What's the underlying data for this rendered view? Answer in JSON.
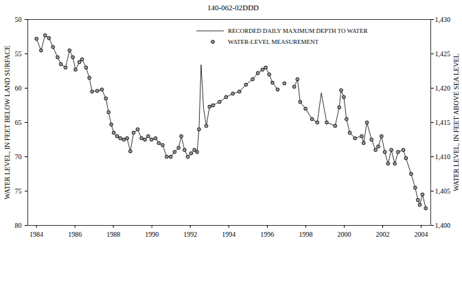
{
  "chart_data": {
    "type": "line",
    "title": "140-062-02DDD",
    "ylabel": "WATER LEVEL, IN FEET BELOW LAND SURFACE",
    "y2label": "WATER LEVEL, IN FEET ABOVE SEA LEVEL",
    "xlim": [
      1983.55,
      2004.5
    ],
    "xticks": [
      1984,
      1986,
      1988,
      1990,
      1992,
      1994,
      1996,
      1998,
      2000,
      2002,
      2004
    ],
    "ylim": [
      50,
      80
    ],
    "yticks": [
      50,
      55,
      60,
      65,
      70,
      75,
      80
    ],
    "y2lim": [
      1430,
      1400
    ],
    "y2ticks": [
      {
        "value": 1430,
        "label": "1,430"
      },
      {
        "value": 1425,
        "label": "1,425"
      },
      {
        "value": 1420,
        "label": "1,420"
      },
      {
        "value": 1415,
        "label": "1,415"
      },
      {
        "value": 1410,
        "label": "1,410"
      },
      {
        "value": 1405,
        "label": "1,405"
      },
      {
        "value": 1400,
        "label": "1,400"
      }
    ],
    "grid": false,
    "legend": "top",
    "series": [
      {
        "name": "RECORDED DAILY MAXIMUM DEPTH TO WATER",
        "type": "line",
        "line_style": "solid",
        "color": "#000000",
        "x": [
          1984.0,
          1984.24,
          1984.45,
          1984.65,
          1984.86,
          1985.1,
          1985.27,
          1985.51,
          1985.72,
          1985.89,
          1986.03,
          1986.23,
          1986.37,
          1986.58,
          1986.75,
          1986.89,
          1987.16,
          1987.4,
          1987.61,
          1987.75,
          1987.89,
          1988.02,
          1988.19,
          1988.36,
          1988.54,
          1988.71,
          1988.88,
          1989.05,
          1989.26,
          1989.46,
          1989.64,
          1989.81,
          1989.98,
          1990.19,
          1990.36,
          1990.56,
          1990.77,
          1990.98,
          1991.18,
          1991.39,
          1991.53,
          1991.7,
          1991.87,
          1992.04,
          1992.21,
          1992.35,
          1992.45,
          1992.56,
          1992.69,
          1992.83,
          1993.0,
          1993.18,
          1993.52,
          1993.86,
          1994.21,
          1994.55,
          1994.89,
          1995.24,
          1995.51,
          1995.75,
          1995.92,
          1996.1,
          1996.27,
          1996.54,
          1996.7,
          1997.4,
          1997.57,
          1997.71,
          1997.99,
          1998.33,
          1998.6,
          1998.81,
          1999.09,
          1999.53,
          1999.74,
          1999.84,
          1999.98,
          2000.12,
          2000.29,
          2000.56,
          2000.91,
          2001.01,
          2001.18,
          2001.42,
          2001.63,
          2001.77,
          2001.94,
          2002.11,
          2002.28,
          2002.45,
          2002.63,
          2002.8,
          2003.07,
          2003.21,
          2003.48,
          2003.69,
          2003.83,
          2003.93,
          2004.07,
          2004.24
        ],
        "values": [
          52.8,
          54.5,
          52.3,
          52.7,
          54,
          55.5,
          56.5,
          57,
          54.5,
          55.5,
          57.3,
          56.2,
          55.8,
          57,
          58.5,
          60.5,
          60.4,
          60.2,
          61.5,
          63.5,
          65.3,
          66.5,
          67,
          67.3,
          67.5,
          67.3,
          69.2,
          66.5,
          66,
          67.3,
          67.5,
          67,
          67.5,
          67.3,
          68,
          68.3,
          70,
          70,
          69.3,
          68.7,
          67,
          69,
          70,
          69.5,
          69,
          69.3,
          66,
          56.6,
          63,
          65.5,
          62.7,
          62.5,
          62,
          61.3,
          60.8,
          60.5,
          59.5,
          58.7,
          57.8,
          57.3,
          57,
          58,
          59.2,
          60.2,
          null,
          59.8,
          58.7,
          62,
          63,
          64.5,
          65,
          60.7,
          65,
          65.5,
          62.8,
          60.3,
          61.3,
          64.5,
          66.5,
          67.3,
          67,
          68,
          65,
          67.5,
          69,
          68.5,
          67,
          69.3,
          71,
          69,
          71,
          69.3,
          69,
          70.2,
          72.5,
          74.5,
          76.3,
          77,
          75.5,
          77.5
        ]
      },
      {
        "name": "WATER-LEVEL MEASUREMENT",
        "type": "scatter",
        "marker": "circle",
        "color": "#000000",
        "x": [
          1984.0,
          1984.24,
          1984.45,
          1984.65,
          1984.86,
          1985.1,
          1985.27,
          1985.51,
          1985.72,
          1985.89,
          1986.03,
          1986.23,
          1986.37,
          1986.58,
          1986.75,
          1986.89,
          1987.16,
          1987.4,
          1987.61,
          1987.75,
          1987.89,
          1988.02,
          1988.19,
          1988.36,
          1988.54,
          1988.71,
          1988.88,
          1989.05,
          1989.26,
          1989.46,
          1989.64,
          1989.81,
          1989.98,
          1990.19,
          1990.36,
          1990.56,
          1990.77,
          1990.98,
          1991.18,
          1991.39,
          1991.53,
          1991.7,
          1991.87,
          1992.04,
          1992.21,
          1992.35,
          1992.45,
          1992.83,
          1993.0,
          1993.18,
          1993.52,
          1993.86,
          1994.21,
          1994.55,
          1994.89,
          1995.24,
          1995.51,
          1995.75,
          1995.92,
          1996.1,
          1996.27,
          1996.54,
          1996.89,
          1997.4,
          1997.57,
          1997.71,
          1997.99,
          1998.33,
          1998.6,
          1999.09,
          1999.53,
          1999.74,
          1999.84,
          1999.98,
          2000.12,
          2000.29,
          2000.56,
          2000.91,
          2001.01,
          2001.18,
          2001.42,
          2001.63,
          2001.77,
          2001.94,
          2002.11,
          2002.28,
          2002.45,
          2002.63,
          2002.8,
          2003.07,
          2003.21,
          2003.48,
          2003.69,
          2003.83,
          2003.93,
          2004.07,
          2004.24
        ],
        "values": [
          52.8,
          54.5,
          52.3,
          52.7,
          54,
          55.5,
          56.5,
          57,
          54.5,
          55.5,
          57.3,
          56.2,
          55.8,
          57,
          58.5,
          60.5,
          60.4,
          60.2,
          61.5,
          63.5,
          65.3,
          66.5,
          67,
          67.3,
          67.5,
          67.3,
          69.2,
          66.5,
          66,
          67.3,
          67.5,
          67,
          67.5,
          67.3,
          68,
          68.3,
          70,
          70,
          69.3,
          68.7,
          67,
          69,
          70,
          69.5,
          69,
          69.3,
          66,
          65.5,
          62.7,
          62.5,
          62,
          61.3,
          60.8,
          60.5,
          59.5,
          58.7,
          57.8,
          57.3,
          57,
          58,
          59.2,
          60.2,
          59.3,
          59.8,
          58.7,
          62,
          63,
          64.5,
          65,
          65,
          65.5,
          62.8,
          60.3,
          61.3,
          64.5,
          66.5,
          67.3,
          67,
          68,
          65,
          67.5,
          69,
          68.5,
          67,
          69.3,
          71,
          69,
          71,
          69.3,
          69,
          70.2,
          72.5,
          74.5,
          76.3,
          77,
          75.5,
          77.5
        ]
      }
    ]
  }
}
